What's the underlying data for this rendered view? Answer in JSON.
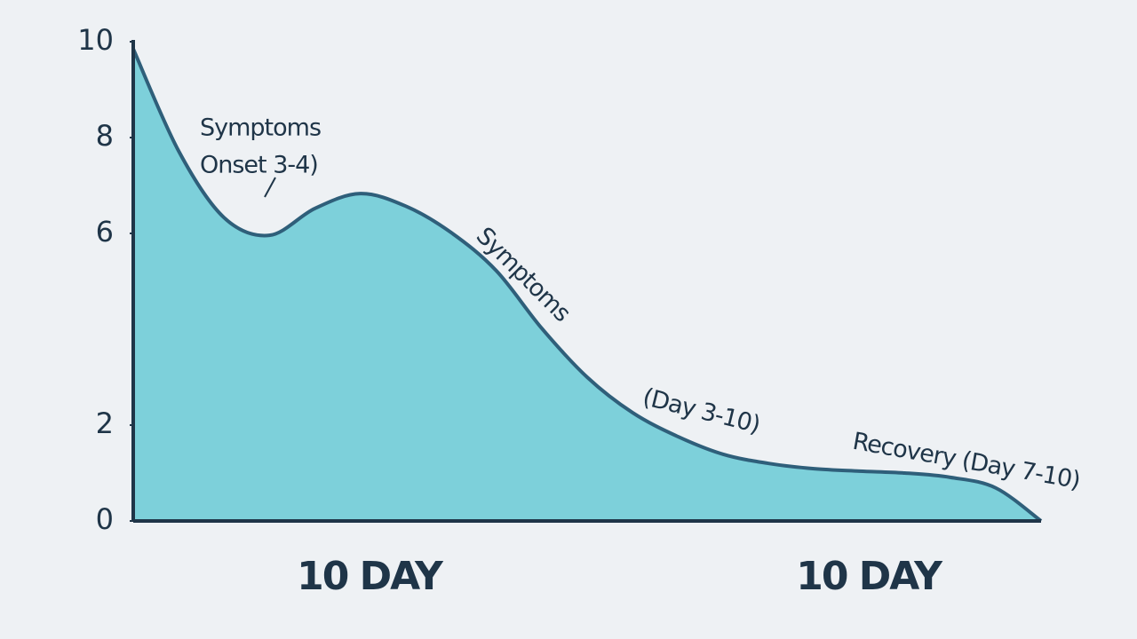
{
  "chart_data": {
    "type": "area",
    "categories": [
      null,
      null,
      null,
      null,
      null,
      "10 DAY",
      null,
      null,
      null,
      null,
      null,
      null,
      null,
      null,
      null,
      null,
      "10 DAY",
      null,
      null,
      null,
      null
    ],
    "values": [
      9.85,
      7.72,
      6.33,
      5.96,
      6.52,
      6.83,
      6.57,
      6.02,
      5.22,
      4.02,
      3.0,
      2.26,
      1.76,
      1.39,
      1.2,
      1.09,
      1.04,
      1.0,
      0.91,
      0.69,
      0
    ],
    "color": "#7dd0da",
    "line_color": "#2f5f7a",
    "ylim": [
      0,
      10
    ],
    "yticks": [
      0,
      2,
      6,
      8,
      10
    ],
    "annotations": [
      {
        "lines": [
          "Symptoms",
          "Onset 3-4)"
        ]
      },
      {
        "lines": [
          "Symptoms"
        ]
      },
      {
        "lines": [
          "(Day 3-10)"
        ]
      },
      {
        "lines": [
          "Recovery (Day 7-10)"
        ]
      }
    ]
  }
}
